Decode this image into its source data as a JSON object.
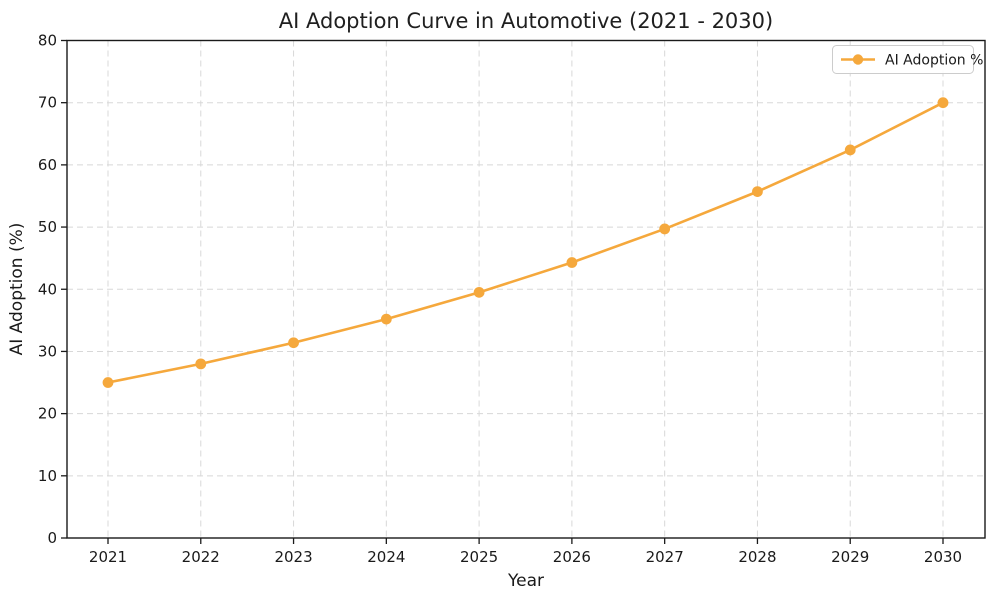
{
  "chart_data": {
    "type": "line",
    "title": "AI Adoption Curve in Automotive (2021 - 2030)",
    "xlabel": "Year",
    "ylabel": "AI Adoption (%)",
    "categories": [
      "2021",
      "2022",
      "2023",
      "2024",
      "2025",
      "2026",
      "2027",
      "2028",
      "2029",
      "2030"
    ],
    "series": [
      {
        "name": "AI Adoption %",
        "values": [
          25.0,
          28.0,
          31.4,
          35.2,
          39.5,
          44.3,
          49.7,
          55.7,
          62.4,
          70.0
        ]
      }
    ],
    "ylim": [
      0,
      80
    ],
    "yticks": [
      0,
      10,
      20,
      30,
      40,
      50,
      60,
      70,
      80
    ],
    "grid": true,
    "grid_style": "dashed",
    "legend_position": "upper right",
    "marker": "circle"
  },
  "colors": {
    "line": "#F5A83C",
    "marker": "#F5A83C",
    "grid": "#D8D8D8",
    "spine": "#1A1A1A",
    "text": "#1A1A1A",
    "legend_border": "#CCCCCC",
    "background": "#FFFFFF"
  }
}
